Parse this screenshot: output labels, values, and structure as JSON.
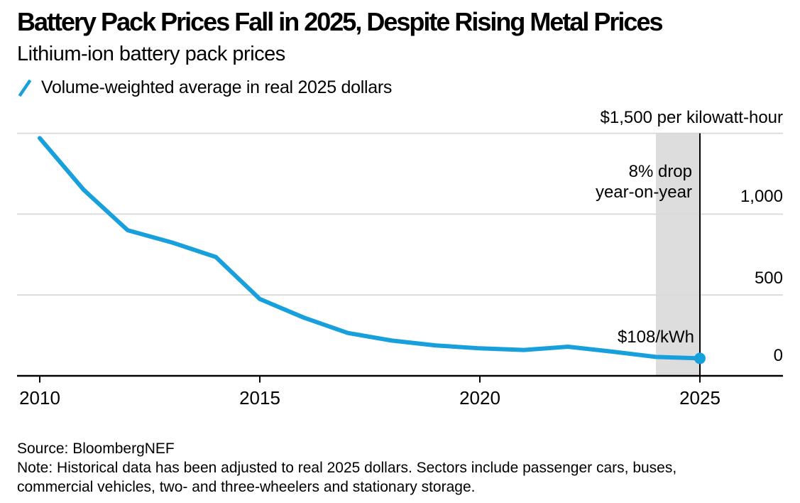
{
  "header": {
    "title": "Battery Pack Prices Fall in 2025, Despite Rising Metal Prices",
    "subtitle": "Lithium-ion battery pack prices",
    "legend": {
      "marker": "slash-icon",
      "label": "Volume-weighted average in real 2025 dollars"
    }
  },
  "chart_data": {
    "type": "line",
    "title": "Lithium-ion battery pack prices",
    "series_name": "Volume-weighted average in real 2025 dollars",
    "x": [
      2010,
      2011,
      2012,
      2013,
      2014,
      2015,
      2016,
      2017,
      2018,
      2019,
      2020,
      2021,
      2022,
      2023,
      2024,
      2025
    ],
    "values": [
      1470,
      1150,
      900,
      825,
      735,
      475,
      360,
      265,
      218,
      188,
      170,
      160,
      180,
      150,
      117,
      108
    ],
    "xlabel": "",
    "ylabel": "$ per kilowatt-hour",
    "unit_label": "$1,500 per kilowatt-hour",
    "ylim": [
      0,
      1500
    ],
    "y_grid_values": [
      500,
      1000,
      1500
    ],
    "y_tick_labels": [
      "1,000",
      "500",
      "0"
    ],
    "x_tick_values": [
      2010,
      2015,
      2020,
      2025
    ],
    "x_tick_labels": [
      "2010",
      "2015",
      "2020",
      "2025"
    ],
    "grid": true,
    "legend_position": "top-left",
    "colors": {
      "line": "#18A0DC",
      "gridline": "#D8D8D8",
      "band": "#DDDDDD",
      "axis": "#000000"
    },
    "annotations": {
      "band": {
        "x_from": 2024,
        "x_to": 2025
      },
      "drop_line1": "8% drop",
      "drop_line2": "year-on-year",
      "price_label": "$108/kWh",
      "vline_year": 2025,
      "end_dot": {
        "year": 2025,
        "value": 108
      }
    }
  },
  "footer": {
    "source": "Source: BloombergNEF",
    "note_line1": "Note: Historical data has been adjusted to real 2025 dollars. Sectors include passenger cars, buses,",
    "note_line2": "commercial vehicles, two- and three-wheelers and stationary storage."
  }
}
